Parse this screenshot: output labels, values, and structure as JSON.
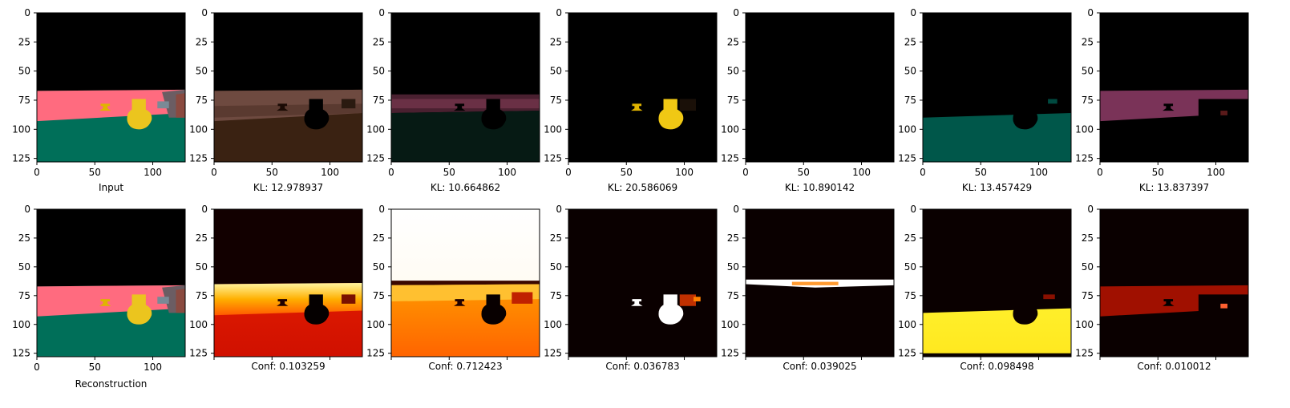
{
  "figure": {
    "axis_ticks": [
      0,
      25,
      50,
      75,
      100,
      125
    ],
    "x_ticks": [
      0,
      50,
      100
    ],
    "image_extent": 128
  },
  "chart_data": {
    "type": "heatmap",
    "top_row": [
      {
        "caption": "Input",
        "kind": "input"
      },
      {
        "caption": "KL: 12.978937",
        "kind": "slot_brown"
      },
      {
        "caption": "KL: 10.664862",
        "kind": "slot_darkpink"
      },
      {
        "caption": "KL: 20.586069",
        "kind": "slot_yellow"
      },
      {
        "caption": "KL: 10.890142",
        "kind": "slot_black"
      },
      {
        "caption": "KL: 13.457429",
        "kind": "slot_teal"
      },
      {
        "caption": "KL: 13.837397",
        "kind": "slot_pink"
      }
    ],
    "bottom_row": [
      {
        "caption": "Reconstruction",
        "kind": "input"
      },
      {
        "caption": "Conf: 0.103259",
        "kind": "conf_wall_floor"
      },
      {
        "caption": "Conf: 0.712423",
        "kind": "conf_sky"
      },
      {
        "caption": "Conf: 0.036783",
        "kind": "conf_objects"
      },
      {
        "caption": "Conf: 0.039025",
        "kind": "conf_line"
      },
      {
        "caption": "Conf: 0.098498",
        "kind": "conf_floor"
      },
      {
        "caption": "Conf: 0.010012",
        "kind": "conf_wall"
      }
    ]
  }
}
